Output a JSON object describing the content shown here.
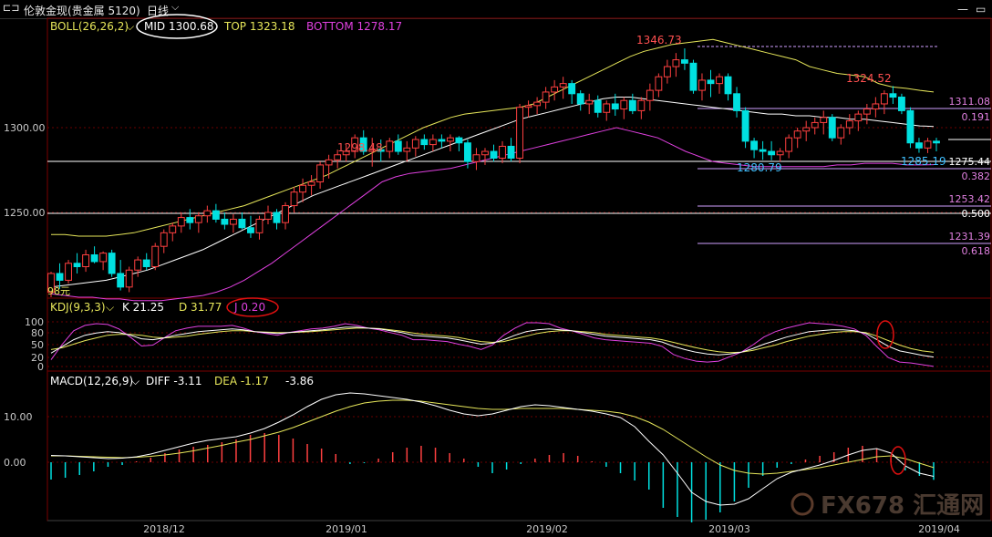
{
  "window": {
    "title": "伦敦金现(贵金属 5120)",
    "period": "日线",
    "min_btn": "—",
    "restore_btn": "▭"
  },
  "boll_legend": {
    "name": "BOLL(26,26,2)",
    "mid": "MID 1300.68",
    "top": "TOP 1323.18",
    "bottom": "BOTTOM 1278.17"
  },
  "kdj_legend": {
    "name": "KDJ(9,3,3)",
    "k": "K 21.25",
    "d": "D 31.77",
    "j": "J 0.20"
  },
  "macd_legend": {
    "name": "MACD(12,26,9)",
    "diff": "DIFF -3.11",
    "dea": "DEA -1.17",
    "macd": "-3.86"
  },
  "price_axis": {
    "ticks": [
      "1300.00",
      "1250.00"
    ]
  },
  "kdj_axis": {
    "ticks": [
      "100",
      "80",
      "50",
      "20",
      "0"
    ]
  },
  "macd_axis": {
    "ticks": [
      "10.00",
      "0.00"
    ]
  },
  "date_axis": {
    "labels": [
      "2018/12",
      "2019/01",
      "2019/02",
      "2019/03",
      "2019/04"
    ]
  },
  "annotations": {
    "high1": "1298.48",
    "high2": "1346.73",
    "high3": "1324.52",
    "low1": "1280.79",
    "low2": "1285.19",
    "start_label": "98元",
    "fib_levels": [
      {
        "price": "1311.08",
        "ratio": "0.191"
      },
      {
        "price": "1275.44",
        "ratio": "0.382"
      },
      {
        "price": "1253.42",
        "ratio": "0.500"
      },
      {
        "price": "1231.39",
        "ratio": "0.618"
      }
    ]
  },
  "watermark": "FX678 汇通网",
  "colors": {
    "up": "#ff4040",
    "down": "#00e0e0",
    "boll_top": "#e6e65a",
    "boll_mid": "#ffffff",
    "boll_bottom": "#e040e0",
    "kdj_k": "#ffffff",
    "kdj_d": "#e6e65a",
    "kdj_j": "#e040e0",
    "ellipse_white": "#ffffff",
    "ellipse_red": "#e01010"
  },
  "chart_data": [
    {
      "type": "candlestick",
      "title": "伦敦金现 日线",
      "ylim": [
        1195,
        1370
      ],
      "grid": true,
      "candles": [
        [
          1203,
          1215,
          1200,
          1214
        ],
        [
          1214,
          1220,
          1205,
          1210
        ],
        [
          1210,
          1222,
          1208,
          1220
        ],
        [
          1220,
          1226,
          1214,
          1218
        ],
        [
          1218,
          1228,
          1215,
          1225
        ],
        [
          1225,
          1230,
          1220,
          1221
        ],
        [
          1221,
          1227,
          1216,
          1226
        ],
        [
          1226,
          1228,
          1212,
          1214
        ],
        [
          1214,
          1222,
          1204,
          1206
        ],
        [
          1206,
          1218,
          1203,
          1216
        ],
        [
          1216,
          1224,
          1212,
          1222
        ],
        [
          1222,
          1226,
          1216,
          1218
        ],
        [
          1218,
          1232,
          1216,
          1230
        ],
        [
          1230,
          1240,
          1226,
          1238
        ],
        [
          1238,
          1244,
          1233,
          1242
        ],
        [
          1242,
          1250,
          1238,
          1247
        ],
        [
          1247,
          1252,
          1240,
          1244
        ],
        [
          1244,
          1250,
          1238,
          1248
        ],
        [
          1248,
          1254,
          1244,
          1251
        ],
        [
          1251,
          1255,
          1244,
          1246
        ],
        [
          1246,
          1250,
          1240,
          1243
        ],
        [
          1243,
          1249,
          1238,
          1246
        ],
        [
          1246,
          1250,
          1240,
          1241
        ],
        [
          1241,
          1248,
          1235,
          1238
        ],
        [
          1238,
          1248,
          1234,
          1246
        ],
        [
          1246,
          1254,
          1243,
          1250
        ],
        [
          1250,
          1252,
          1240,
          1244
        ],
        [
          1244,
          1256,
          1240,
          1254
        ],
        [
          1254,
          1265,
          1250,
          1262
        ],
        [
          1262,
          1270,
          1256,
          1266
        ],
        [
          1266,
          1272,
          1260,
          1268
        ],
        [
          1268,
          1280,
          1264,
          1278
        ],
        [
          1278,
          1284,
          1270,
          1281
        ],
        [
          1281,
          1287,
          1276,
          1284
        ],
        [
          1284,
          1290,
          1280,
          1286
        ],
        [
          1286,
          1296,
          1282,
          1294
        ],
        [
          1294,
          1298.48,
          1284,
          1286
        ],
        [
          1286,
          1294,
          1277,
          1287
        ],
        [
          1287,
          1293,
          1280,
          1286
        ],
        [
          1286,
          1294,
          1282,
          1292
        ],
        [
          1292,
          1296,
          1284,
          1286
        ],
        [
          1286,
          1292,
          1280,
          1288
        ],
        [
          1288,
          1295,
          1283,
          1293
        ],
        [
          1293,
          1296,
          1287,
          1290
        ],
        [
          1290,
          1296,
          1286,
          1293
        ],
        [
          1293,
          1296,
          1288,
          1292
        ],
        [
          1292,
          1296,
          1286,
          1294
        ],
        [
          1294,
          1295,
          1286,
          1291
        ],
        [
          1291,
          1293,
          1276,
          1280
        ],
        [
          1280,
          1288,
          1275,
          1284
        ],
        [
          1284,
          1288,
          1278,
          1286
        ],
        [
          1286,
          1290,
          1280,
          1282
        ],
        [
          1282,
          1292,
          1279,
          1289
        ],
        [
          1289,
          1294,
          1280,
          1282
        ],
        [
          1282,
          1314,
          1279,
          1312
        ],
        [
          1312,
          1316,
          1306,
          1313
        ],
        [
          1313,
          1318,
          1308,
          1315
        ],
        [
          1315,
          1324,
          1311,
          1321
        ],
        [
          1321,
          1328,
          1316,
          1324
        ],
        [
          1324,
          1330,
          1317,
          1326
        ],
        [
          1326,
          1328,
          1314,
          1320
        ],
        [
          1320,
          1322,
          1310,
          1314
        ],
        [
          1314,
          1320,
          1308,
          1316
        ],
        [
          1316,
          1319,
          1306,
          1309
        ],
        [
          1309,
          1316,
          1304,
          1314
        ],
        [
          1314,
          1320,
          1307,
          1311
        ],
        [
          1311,
          1318,
          1305,
          1316
        ],
        [
          1316,
          1320,
          1308,
          1310
        ],
        [
          1310,
          1318,
          1305,
          1316
        ],
        [
          1316,
          1326,
          1310,
          1322
        ],
        [
          1322,
          1332,
          1318,
          1330
        ],
        [
          1330,
          1340,
          1326,
          1336
        ],
        [
          1336,
          1344,
          1330,
          1340
        ],
        [
          1340,
          1346.73,
          1334,
          1338
        ],
        [
          1338,
          1340,
          1320,
          1322
        ],
        [
          1322,
          1332,
          1316,
          1328
        ],
        [
          1328,
          1334,
          1318,
          1326
        ],
        [
          1326,
          1332,
          1320,
          1330
        ],
        [
          1330,
          1332,
          1316,
          1320
        ],
        [
          1320,
          1324,
          1306,
          1310
        ],
        [
          1310,
          1312,
          1288,
          1292
        ],
        [
          1292,
          1294,
          1282,
          1287
        ],
        [
          1287,
          1292,
          1281,
          1286
        ],
        [
          1286,
          1292,
          1280.79,
          1284
        ],
        [
          1284,
          1288,
          1280,
          1286
        ],
        [
          1286,
          1296,
          1282,
          1294
        ],
        [
          1294,
          1300,
          1288,
          1298
        ],
        [
          1298,
          1304,
          1292,
          1300
        ],
        [
          1300,
          1306,
          1296,
          1303
        ],
        [
          1303,
          1310,
          1296,
          1306
        ],
        [
          1306,
          1308,
          1292,
          1294
        ],
        [
          1294,
          1302,
          1290,
          1300
        ],
        [
          1300,
          1308,
          1296,
          1304
        ],
        [
          1304,
          1310,
          1298,
          1308
        ],
        [
          1308,
          1314,
          1302,
          1311
        ],
        [
          1311,
          1318,
          1306,
          1314
        ],
        [
          1314,
          1322,
          1308,
          1320
        ],
        [
          1320,
          1324.52,
          1314,
          1318
        ],
        [
          1318,
          1320,
          1308,
          1310
        ],
        [
          1310,
          1312,
          1288,
          1291
        ],
        [
          1291,
          1294,
          1285.19,
          1288
        ],
        [
          1288,
          1294,
          1285,
          1292
        ],
        [
          1292,
          1294,
          1286,
          1291
        ]
      ],
      "boll_top": [
        1237,
        1237,
        1236,
        1236,
        1236,
        1237,
        1238,
        1240,
        1242,
        1244,
        1246,
        1248,
        1250,
        1252,
        1254,
        1257,
        1260,
        1263,
        1266,
        1269,
        1272,
        1276,
        1280,
        1284,
        1288,
        1292,
        1296,
        1300,
        1303,
        1306,
        1308,
        1309,
        1310,
        1311,
        1312,
        1314,
        1318,
        1322,
        1326,
        1330,
        1334,
        1338,
        1342,
        1345,
        1347,
        1349,
        1350,
        1351,
        1352,
        1350,
        1348,
        1346,
        1344,
        1342,
        1340,
        1336,
        1334,
        1332,
        1331,
        1330,
        1326,
        1324,
        1323.18,
        1322,
        1321
      ],
      "boll_mid": [
        1206,
        1207,
        1208,
        1209,
        1210,
        1212,
        1214,
        1216,
        1219,
        1222,
        1225,
        1228,
        1232,
        1236,
        1240,
        1244,
        1248,
        1252,
        1256,
        1260,
        1263,
        1266,
        1269,
        1272,
        1275,
        1278,
        1281,
        1284,
        1287,
        1290,
        1293,
        1296,
        1299,
        1302,
        1305,
        1307,
        1309,
        1311,
        1313,
        1315,
        1317,
        1318,
        1318,
        1317,
        1316,
        1315,
        1314,
        1313,
        1312,
        1311,
        1310,
        1309,
        1308,
        1308,
        1307,
        1307,
        1306,
        1306,
        1305,
        1305,
        1304,
        1303,
        1302,
        1301,
        1300.68
      ],
      "boll_bottom": [
        1202,
        1201,
        1200,
        1200,
        1199,
        1199,
        1198,
        1198,
        1198,
        1199,
        1200,
        1201,
        1203,
        1206,
        1210,
        1215,
        1220,
        1226,
        1232,
        1238,
        1244,
        1250,
        1256,
        1262,
        1268,
        1271,
        1273,
        1274,
        1275,
        1276,
        1278,
        1280,
        1282,
        1284,
        1286,
        1288,
        1290,
        1292,
        1294,
        1296,
        1298,
        1300,
        1298,
        1296,
        1294,
        1290,
        1286,
        1283,
        1280,
        1279,
        1278,
        1277,
        1277,
        1277,
        1277,
        1277,
        1277,
        1278,
        1278,
        1279,
        1279,
        1279,
        1278,
        1278,
        1278.17
      ],
      "kdj": {
        "k": [
          30,
          45,
          60,
          70,
          75,
          78,
          76,
          70,
          62,
          60,
          64,
          70,
          74,
          78,
          80,
          82,
          84,
          82,
          78,
          76,
          74,
          76,
          78,
          80,
          82,
          85,
          88,
          88,
          86,
          84,
          80,
          76,
          70,
          68,
          66,
          64,
          60,
          55,
          50,
          52,
          60,
          70,
          78,
          82,
          84,
          82,
          80,
          76,
          72,
          68,
          66,
          64,
          62,
          60,
          55,
          45,
          38,
          32,
          28,
          26,
          28,
          32,
          40,
          50,
          58,
          66,
          72,
          78,
          80,
          82,
          82,
          80,
          74,
          60,
          45,
          35,
          30,
          25,
          21.25
        ],
        "d": [
          38,
          42,
          50,
          58,
          64,
          70,
          72,
          72,
          70,
          66,
          64,
          66,
          68,
          72,
          75,
          78,
          80,
          80,
          78,
          77,
          76,
          76,
          77,
          78,
          80,
          82,
          84,
          86,
          86,
          85,
          82,
          79,
          75,
          72,
          70,
          68,
          65,
          60,
          56,
          54,
          56,
          62,
          68,
          74,
          78,
          80,
          80,
          78,
          76,
          72,
          70,
          68,
          66,
          64,
          60,
          54,
          48,
          42,
          37,
          33,
          31,
          32,
          36,
          42,
          48,
          56,
          62,
          68,
          72,
          76,
          78,
          78,
          76,
          68,
          58,
          48,
          40,
          35,
          31.77
        ],
        "j": [
          15,
          50,
          80,
          92,
          96,
          94,
          84,
          66,
          46,
          48,
          64,
          80,
          86,
          90,
          90,
          90,
          92,
          86,
          78,
          74,
          70,
          76,
          80,
          84,
          86,
          90,
          96,
          92,
          86,
          82,
          76,
          70,
          60,
          60,
          58,
          56,
          50,
          45,
          38,
          48,
          70,
          86,
          98,
          98,
          96,
          86,
          80,
          72,
          64,
          60,
          58,
          56,
          54,
          52,
          45,
          27,
          18,
          12,
          10,
          12,
          22,
          32,
          48,
          66,
          78,
          86,
          92,
          98,
          96,
          94,
          90,
          84,
          70,
          44,
          20,
          10,
          8,
          4,
          0.2
        ]
      },
      "macd": {
        "diff": [
          1.5,
          1.4,
          1.2,
          1.0,
          0.8,
          0.9,
          1.2,
          1.8,
          2.6,
          3.4,
          4.2,
          4.8,
          5.2,
          5.6,
          6.4,
          7.4,
          8.8,
          10.4,
          12.2,
          13.8,
          14.8,
          15.2,
          15.0,
          14.6,
          14.2,
          13.8,
          13.2,
          12.4,
          11.4,
          10.6,
          10.2,
          10.6,
          11.4,
          12.2,
          12.6,
          12.4,
          12.0,
          11.6,
          11.2,
          10.6,
          9.8,
          7.8,
          4.6,
          1.6,
          -2.4,
          -6.6,
          -8.6,
          -9.4,
          -9.2,
          -8.0,
          -5.8,
          -3.6,
          -2.2,
          -1.4,
          -0.6,
          0.4,
          1.6,
          2.6,
          3.0,
          2.0,
          -0.8,
          -2.4,
          -3.11
        ],
        "dea": [
          1.4,
          1.4,
          1.3,
          1.2,
          1.1,
          1.0,
          1.1,
          1.3,
          1.6,
          2.0,
          2.5,
          3.1,
          3.7,
          4.4,
          5.0,
          5.8,
          6.6,
          7.6,
          8.8,
          10.0,
          11.2,
          12.2,
          13.0,
          13.4,
          13.6,
          13.6,
          13.4,
          13.0,
          12.6,
          12.2,
          11.8,
          11.6,
          11.6,
          11.8,
          11.8,
          11.8,
          11.8,
          11.6,
          11.4,
          11.2,
          10.8,
          10.0,
          8.8,
          7.2,
          5.2,
          3.2,
          1.2,
          -0.6,
          -1.8,
          -2.4,
          -2.6,
          -2.4,
          -2.0,
          -1.6,
          -1.2,
          -0.6,
          0.0,
          0.6,
          1.2,
          1.4,
          0.8,
          -0.2,
          -1.17
        ],
        "hist": [
          -3.8,
          -3.4,
          -2.8,
          -2.0,
          -1.0,
          -0.6,
          0.2,
          1.0,
          2.0,
          2.8,
          3.4,
          3.8,
          4.4,
          5.0,
          6.0,
          6.4,
          6.0,
          5.2,
          4.0,
          3.0,
          1.8,
          -0.4,
          -0.2,
          0.8,
          2.2,
          3.2,
          3.6,
          3.2,
          2.0,
          0.8,
          -1.0,
          -2.4,
          -1.6,
          -0.4,
          0.8,
          1.6,
          2.0,
          1.4,
          0.2,
          -1.0,
          -2.4,
          -4.0,
          -6.0,
          -10.0,
          -12.0,
          -13.2,
          -12.6,
          -11.0,
          -8.6,
          -5.6,
          -3.0,
          -1.2,
          -0.4,
          0.6,
          1.4,
          2.2,
          3.2,
          3.6,
          3.0,
          1.2,
          -1.8,
          -3.0,
          -3.86
        ]
      }
    }
  ]
}
